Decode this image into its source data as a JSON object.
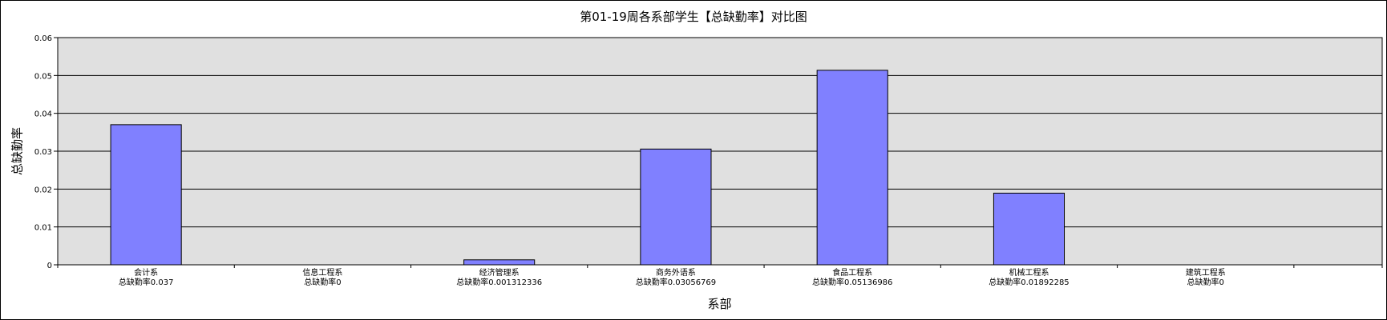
{
  "chart_data": {
    "type": "bar",
    "title": "第01-19周各系部学生【总缺勤率】对比图",
    "xlabel": "系部",
    "ylabel": "总缺勤率",
    "ylim": [
      0,
      0.06
    ],
    "yticks": [
      "0",
      "0.01",
      "0.02",
      "0.03",
      "0.04",
      "0.05",
      "0.06"
    ],
    "grid": true,
    "categories": [
      "会计系",
      "信息工程系",
      "经济管理系",
      "商务外语系",
      "食品工程系",
      "机械工程系",
      "建筑工程系"
    ],
    "value_labels": [
      "总缺勤率0.037",
      "总缺勤率0",
      "总缺勤率0.001312336",
      "总缺勤率0.03056769",
      "总缺勤率0.05136986",
      "总缺勤率0.01892285",
      "总缺勤率0"
    ],
    "values": [
      0.037,
      0,
      0.001312336,
      0.03056769,
      0.05136986,
      0.01892285,
      0
    ],
    "category_slots": 7.5,
    "colors": {
      "bar": "#8080ff",
      "plot_background": "#e0e0e0",
      "gridline": "#000000"
    }
  }
}
